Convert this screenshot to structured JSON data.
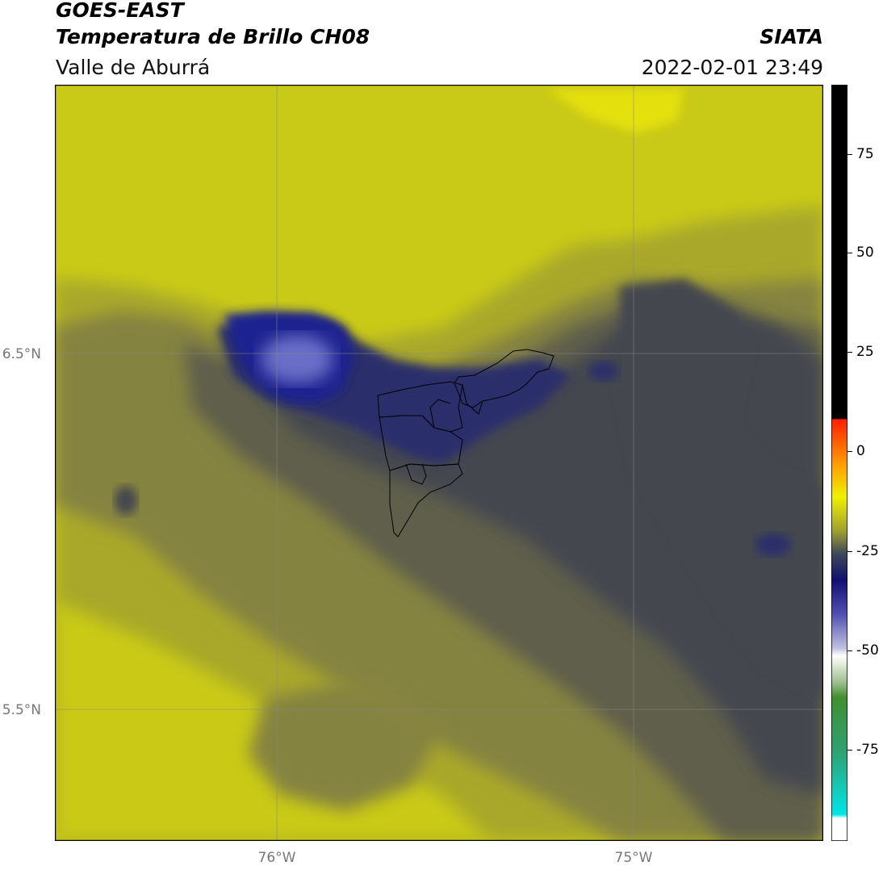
{
  "header": {
    "title": "GOES-EAST",
    "product": "Temperatura de Brillo CH08",
    "region": "Valle de Aburrá",
    "agency": "SIATA",
    "datetime": "2022-02-01 23:49"
  },
  "map": {
    "lat_labels": [
      "6.5°N",
      "5.5°N"
    ],
    "lon_labels": [
      "76°W",
      "75°W"
    ],
    "colors": {
      "yellow_high": "#e4e00b",
      "yellow": "#c9c917",
      "olive": "#a9a82c",
      "olive_dark": "#858340",
      "grey": "#5f5e4c",
      "slate": "#45474f",
      "navy": "#2c2e6a",
      "blue": "#1f2090",
      "blue_core": "#6a6ec7",
      "boundary": "#000000"
    }
  },
  "colorbar": {
    "ticks": [
      "75",
      "50",
      "25",
      "0",
      "-25",
      "-50",
      "-75"
    ]
  }
}
